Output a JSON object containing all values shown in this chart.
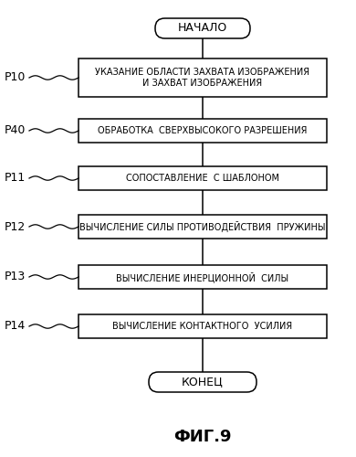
{
  "title": "ФИГ.9",
  "background_color": "#ffffff",
  "start_end_labels": [
    "НАЧАЛО",
    "КОНЕЦ"
  ],
  "boxes": [
    {
      "label": "УКАЗАНИЕ ОБЛАСТИ ЗАХВАТА ИЗОБРАЖЕНИЯ\nИ ЗАХВАТ ИЗОБРАЖЕНИЯ",
      "tag": "P10"
    },
    {
      "label": "ОБРАБОТКА  СВЕРХВЫСОКОГО РАЗРЕШЕНИЯ",
      "tag": "P40"
    },
    {
      "label": "СОПОСТАВЛЕНИЕ  С ШАБЛОНОМ",
      "tag": "P11"
    },
    {
      "label": "ВЫЧИСЛЕНИЕ СИЛЫ ПРОТИВОДЕЙСТВИЯ  ПРУЖИНЫ",
      "tag": "P12"
    },
    {
      "label": "ВЫЧИСЛЕНИЕ ИНЕРЦИОННОЙ  СИЛЫ",
      "tag": "P13"
    },
    {
      "label": "ВЫЧИСЛЕНИЕ КОНТАКТНОГО  УСИЛИЯ",
      "tag": "P14"
    }
  ],
  "font_size": 7.0,
  "tag_font_size": 9.0,
  "title_font_size": 13,
  "terminal_font_size": 9.0,
  "line_color": "#000000",
  "box_facecolor": "#ffffff",
  "box_edgecolor": "#000000",
  "line_width": 1.1
}
